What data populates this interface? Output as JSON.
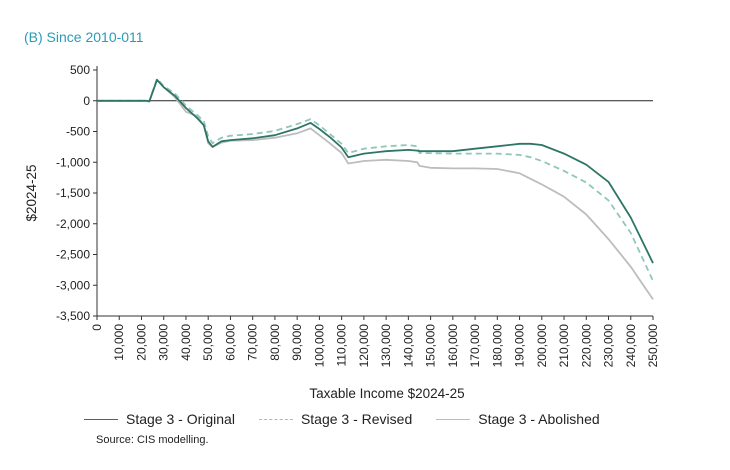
{
  "subtitle": "(B) Since 2010-011",
  "source": "Source:   CIS modelling.",
  "chart_data": {
    "type": "line",
    "xlabel": "Taxable Income $2024-25",
    "ylabel": "$2024-25",
    "xlim": [
      0,
      250000
    ],
    "ylim": [
      -3500,
      500
    ],
    "yticks": [
      500,
      0,
      -500,
      -1000,
      -1500,
      -2000,
      -2500,
      -3000,
      -3500
    ],
    "ytick_labels": [
      "500",
      "0",
      "-500",
      "-1,000",
      "-1,500",
      "-2,000",
      "-2,500",
      "-3,000",
      "-3,500"
    ],
    "xticks": [
      0,
      10000,
      20000,
      30000,
      40000,
      50000,
      60000,
      70000,
      80000,
      90000,
      100000,
      110000,
      120000,
      130000,
      140000,
      150000,
      160000,
      170000,
      180000,
      190000,
      200000,
      210000,
      220000,
      230000,
      240000,
      250000
    ],
    "xtick_labels": [
      "0",
      "10,000",
      "20,000",
      "30,000",
      "40,000",
      "50,000",
      "60,000",
      "70,000",
      "80,000",
      "90,000",
      "100,000",
      "110,000",
      "120,000",
      "130,000",
      "140,000",
      "150,000",
      "160,000",
      "170,000",
      "180,000",
      "190,000",
      "200,000",
      "210,000",
      "220,000",
      "230,000",
      "240,000",
      "250,000"
    ],
    "legend_position": "bottom",
    "grid": false,
    "series": [
      {
        "name": "Stage 3 - Original",
        "color": "#2e7566",
        "style": "solid",
        "x": [
          0,
          22000,
          23500,
          27000,
          30000,
          35000,
          40000,
          45000,
          48000,
          50000,
          52000,
          56000,
          60000,
          70000,
          80000,
          90000,
          96000,
          100000,
          105000,
          110000,
          113000,
          120000,
          130000,
          140000,
          144000,
          145000,
          160000,
          170000,
          180000,
          190000,
          195000,
          200000,
          210000,
          220000,
          230000,
          240000,
          250000
        ],
        "y": [
          0,
          0,
          -10,
          340,
          220,
          80,
          -120,
          -280,
          -400,
          -660,
          -750,
          -660,
          -640,
          -610,
          -560,
          -450,
          -360,
          -460,
          -600,
          -760,
          -920,
          -860,
          -820,
          -800,
          -810,
          -820,
          -820,
          -780,
          -740,
          -700,
          -700,
          -720,
          -860,
          -1040,
          -1320,
          -1900,
          -2640
        ]
      },
      {
        "name": "Stage 3 - Revised",
        "color": "#8fc7b8",
        "style": "dashed",
        "x": [
          0,
          22000,
          23500,
          27000,
          30000,
          35000,
          40000,
          45000,
          48000,
          50000,
          52000,
          56000,
          60000,
          70000,
          80000,
          90000,
          96000,
          100000,
          105000,
          110000,
          113000,
          120000,
          130000,
          140000,
          144000,
          145000,
          160000,
          170000,
          180000,
          190000,
          195000,
          200000,
          210000,
          220000,
          230000,
          240000,
          250000
        ],
        "y": [
          0,
          0,
          -10,
          360,
          240,
          120,
          -80,
          -230,
          -330,
          -580,
          -690,
          -600,
          -570,
          -540,
          -490,
          -380,
          -300,
          -400,
          -550,
          -700,
          -850,
          -780,
          -740,
          -720,
          -740,
          -850,
          -860,
          -860,
          -860,
          -880,
          -920,
          -980,
          -1140,
          -1330,
          -1620,
          -2150,
          -2930
        ]
      },
      {
        "name": "Stage 3 - Abolished",
        "color": "#bdbdbd",
        "style": "solid",
        "x": [
          0,
          22000,
          23500,
          27000,
          30000,
          35000,
          40000,
          45000,
          48000,
          50000,
          52000,
          56000,
          60000,
          70000,
          80000,
          90000,
          96000,
          100000,
          105000,
          110000,
          113000,
          120000,
          130000,
          140000,
          144000,
          145000,
          150000,
          160000,
          170000,
          180000,
          190000,
          200000,
          210000,
          220000,
          230000,
          240000,
          250000
        ],
        "y": [
          0,
          0,
          -10,
          340,
          220,
          60,
          -180,
          -250,
          -400,
          -690,
          -750,
          -680,
          -650,
          -640,
          -600,
          -530,
          -450,
          -560,
          -700,
          -850,
          -1020,
          -980,
          -960,
          -980,
          -1000,
          -1060,
          -1090,
          -1100,
          -1100,
          -1110,
          -1180,
          -1360,
          -1560,
          -1850,
          -2250,
          -2700,
          -3230
        ]
      }
    ]
  }
}
